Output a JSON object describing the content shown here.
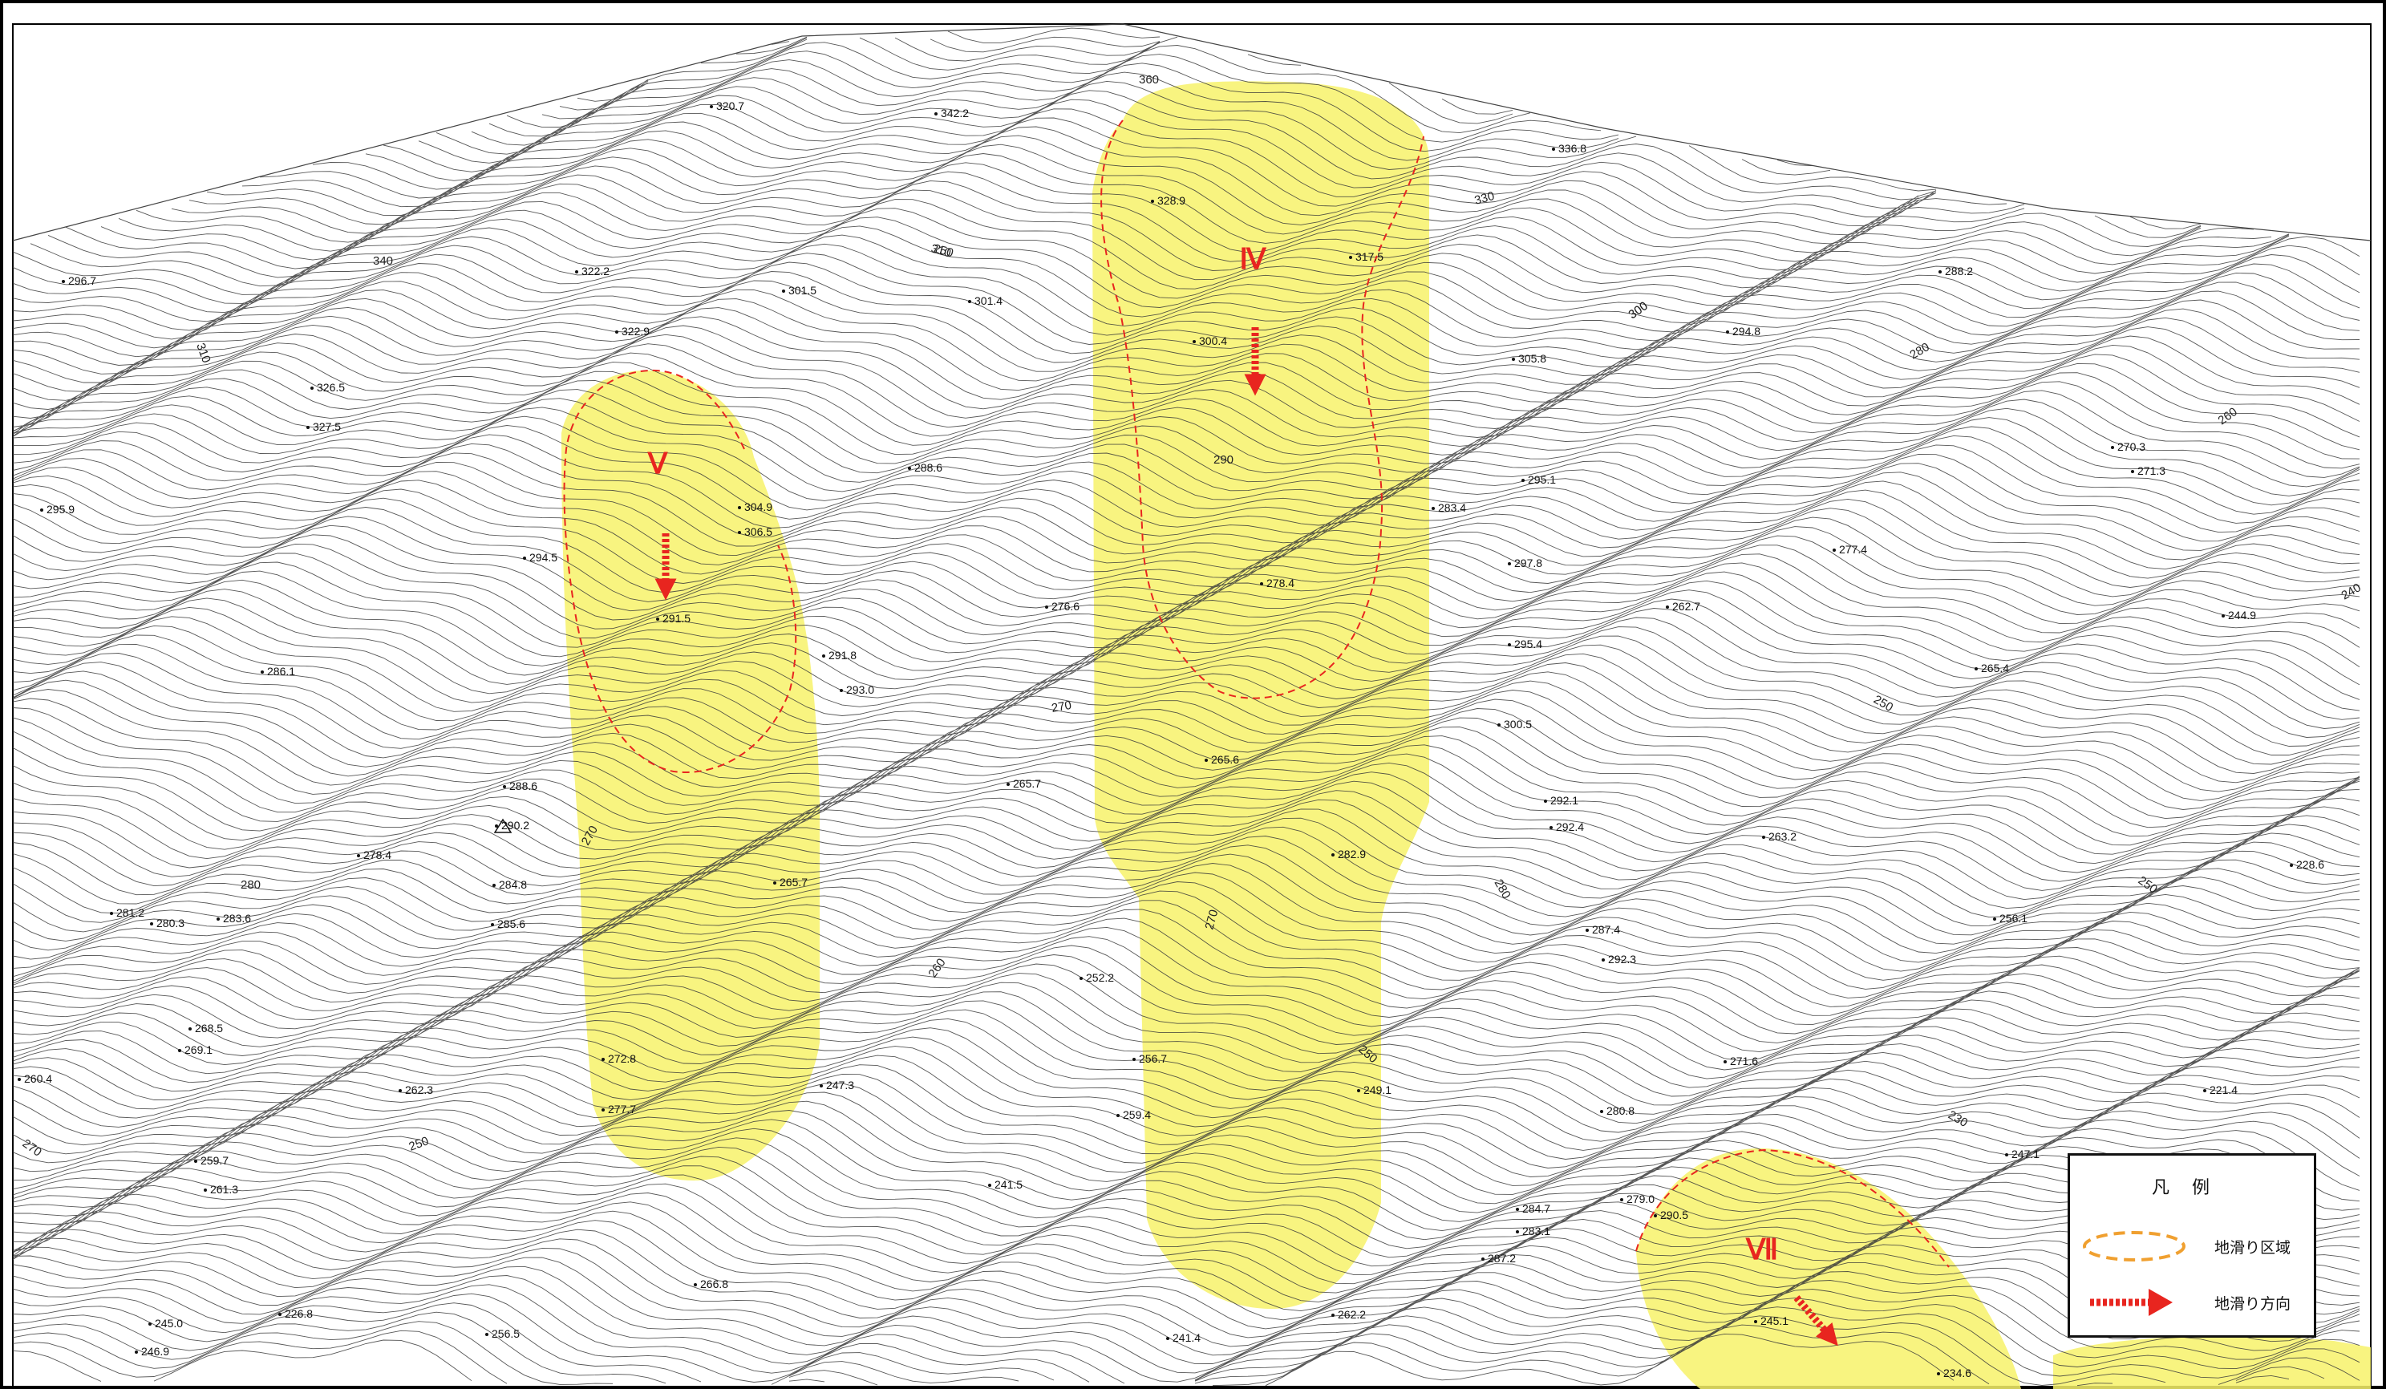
{
  "map": {
    "zones": [
      {
        "label": "Ⅳ"
      },
      {
        "label": "Ⅴ"
      },
      {
        "label": "Ⅶ"
      }
    ],
    "contour_labels": [
      "360",
      "340",
      "310",
      "310",
      "330",
      "300",
      "280",
      "260",
      "240",
      "250",
      "250",
      "230",
      "280",
      "270",
      "270",
      "260",
      "270",
      "280",
      "250",
      "250",
      "270",
      "300",
      "290",
      "250"
    ],
    "elevation_points": [
      "320.7",
      "342.2",
      "336.8",
      "328.9",
      "317.5",
      "288.2",
      "296.7",
      "322.2",
      "301.5",
      "301.4",
      "294.8",
      "305.8",
      "322.9",
      "300.4",
      "326.5",
      "327.5",
      "270.3",
      "271.3",
      "295.9",
      "304.9",
      "306.5",
      "288.6",
      "283.4",
      "295.1",
      "294.5",
      "291.5",
      "277.4",
      "297.8",
      "262.7",
      "244.9",
      "276.6",
      "278.4",
      "286.1",
      "291.8",
      "293.0",
      "295.4",
      "265.4",
      "300.5",
      "265.7",
      "265.6",
      "288.6",
      "290.2",
      "292.1",
      "292.4",
      "263.2",
      "228.6",
      "278.4",
      "282.9",
      "284.8",
      "265.7",
      "281.2",
      "280.3",
      "283.6",
      "285.6",
      "287.4",
      "292.3",
      "256.1",
      "252.2",
      "268.5",
      "269.1",
      "256.7",
      "272.8",
      "271.6",
      "260.4",
      "262.3",
      "247.3",
      "249.1",
      "221.4",
      "277.7",
      "259.4",
      "280.8",
      "247.1",
      "259.7",
      "261.3",
      "241.5",
      "279.0",
      "284.7",
      "290.5",
      "283.1",
      "287.2",
      "266.8",
      "245.0",
      "226.8",
      "256.5",
      "241.4",
      "262.2",
      "245.1",
      "246.9",
      "234.6"
    ]
  },
  "legend": {
    "title": "凡例",
    "items": [
      {
        "label": "地滑り区域",
        "symbol": "dashed-ellipse"
      },
      {
        "label": "地滑り方向",
        "symbol": "red-arrow"
      }
    ]
  },
  "colors": {
    "zone_fill": "#f7f26a",
    "zone_outline": "#e8251f",
    "legend_ellipse": "#f0a030",
    "contour": "#3a3a3a"
  }
}
